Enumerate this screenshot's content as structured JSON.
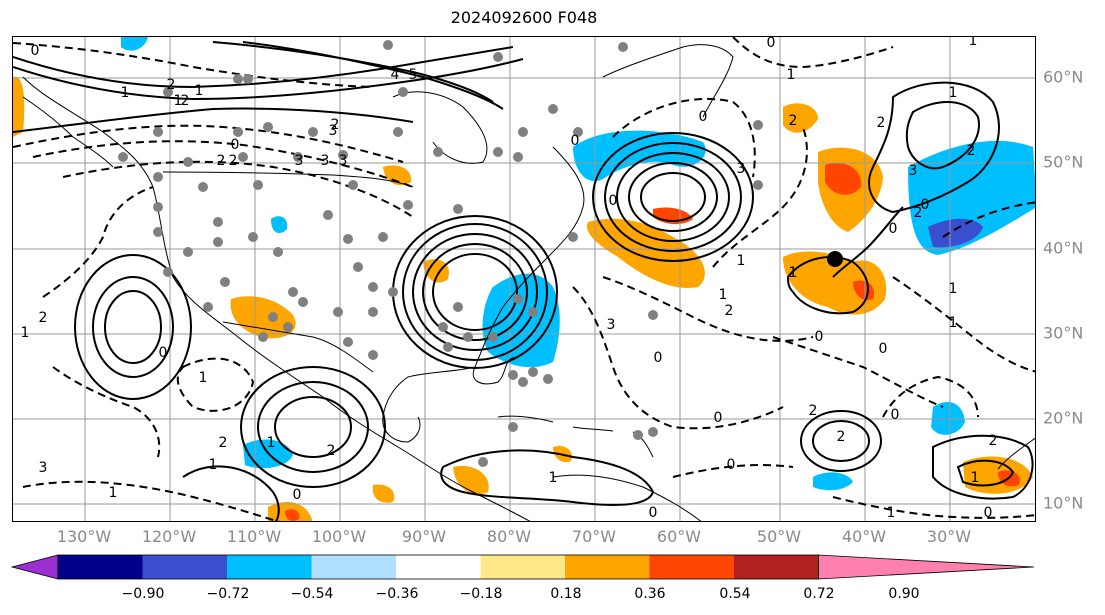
{
  "title": "2024092600 F048",
  "lon_labels": [
    "130°W",
    "120°W",
    "110°W",
    "100°W",
    "90°W",
    "80°W",
    "70°W",
    "60°W",
    "50°W",
    "40°W",
    "30°W"
  ],
  "lat_labels": [
    "60°N",
    "50°N",
    "40°N",
    "30°N",
    "20°N",
    "10°N"
  ],
  "colorbar": {
    "ticks": [
      "−0.90",
      "−0.72",
      "−0.54",
      "−0.36",
      "−0.18",
      "0.18",
      "0.36",
      "0.54",
      "0.72",
      "0.90"
    ],
    "colors": [
      "#9a2fd2",
      "#00008b",
      "#3a4fcf",
      "#00bfff",
      "#b0e0ff",
      "#ffffff",
      "#ffe88a",
      "#ffa500",
      "#ff4500",
      "#b22222",
      "#ff7fae"
    ]
  },
  "contour_labels": [
    "0",
    "2",
    "1",
    "3",
    "4",
    "5",
    "2",
    "3",
    "2",
    "3",
    "0",
    "1",
    "2",
    "3",
    "1",
    "2",
    "0",
    "1",
    "1",
    "2",
    "0",
    "1",
    "2",
    "1",
    "0",
    "3",
    "2",
    "1",
    "0",
    "2",
    "2",
    "1",
    "0",
    "1",
    "0",
    "1",
    "2",
    "2",
    "3",
    "0",
    "2",
    "1",
    "0",
    "1",
    "3",
    "1",
    "0",
    "3",
    "1",
    "2",
    "0",
    "1",
    "0",
    "1",
    "0",
    "0",
    "0",
    "1",
    "0",
    "2",
    "1",
    "2",
    "0"
  ]
}
